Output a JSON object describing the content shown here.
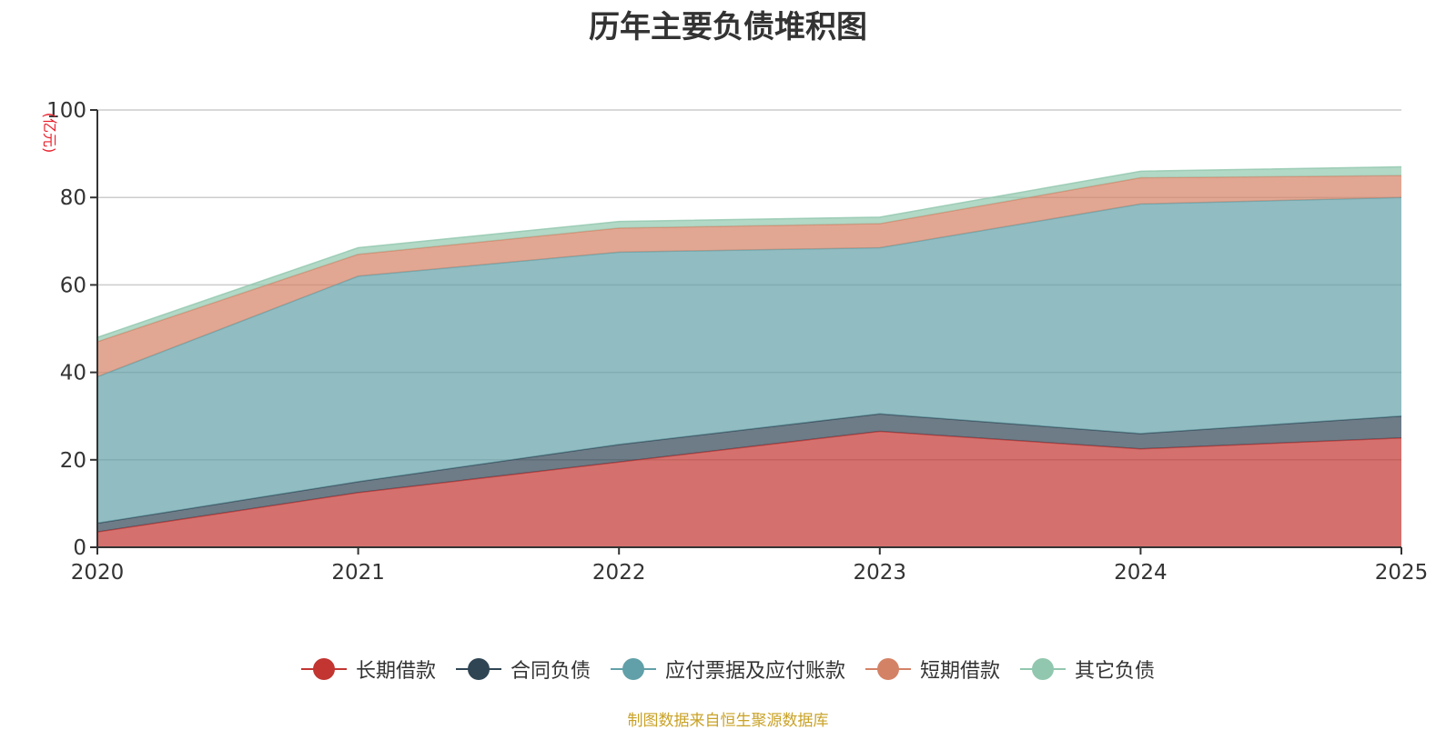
{
  "chart_data": {
    "type": "area",
    "stacked": true,
    "title": "历年主要负债堆积图",
    "ylabel": "(亿元)",
    "xlabel": "",
    "x": [
      "2020",
      "2021",
      "2022",
      "2023",
      "2024",
      "2025"
    ],
    "ylim": [
      0,
      100
    ],
    "yticks": [
      0,
      20,
      40,
      60,
      80,
      100
    ],
    "grid": true,
    "legend_position": "bottom-center",
    "series": [
      {
        "name": "长期借款",
        "color": "#c23531",
        "values": [
          3.5,
          12.5,
          19.5,
          26.5,
          22.5,
          25.0
        ]
      },
      {
        "name": "合同负债",
        "color": "#2f4554",
        "values": [
          2.0,
          2.5,
          4.0,
          4.0,
          3.5,
          5.0
        ]
      },
      {
        "name": "应付票据及应付账款",
        "color": "#61a0a8",
        "values": [
          33.5,
          47.0,
          44.0,
          38.0,
          52.5,
          50.0
        ]
      },
      {
        "name": "短期借款",
        "color": "#d48265",
        "values": [
          8.0,
          5.0,
          5.5,
          5.5,
          6.0,
          5.0
        ]
      },
      {
        "name": "其它负债",
        "color": "#91c7ae",
        "values": [
          1.0,
          1.5,
          1.5,
          1.5,
          1.5,
          2.0
        ]
      }
    ]
  },
  "source_note": "制图数据来自恒生聚源数据库"
}
